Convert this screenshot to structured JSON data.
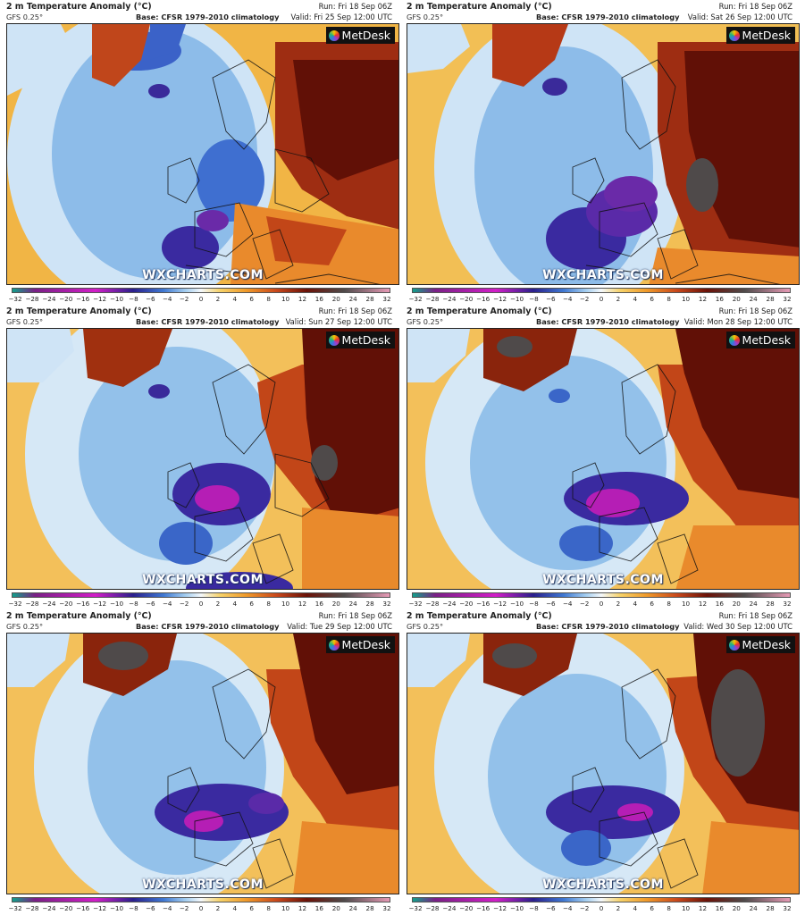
{
  "panels": [
    {
      "title": "2 m Temperature Anomaly (°C)",
      "model": "GFS 0.25°",
      "run": "Run: Fri 18 Sep 06Z",
      "base": "Base: CFSR 1979-2010 climatology",
      "valid": "Valid: Fri 25 Sep 12:00 UTC",
      "logo": "MetDesk",
      "watermark": "WXCHARTS.COM"
    },
    {
      "title": "2 m Temperature Anomaly (°C)",
      "model": "GFS 0.25°",
      "run": "Run: Fri 18 Sep 06Z",
      "base": "Base: CFSR 1979-2010 climatology",
      "valid": "Valid: Sat 26 Sep 12:00 UTC",
      "logo": "MetDesk",
      "watermark": "WXCHARTS.COM"
    },
    {
      "title": "2 m Temperature Anomaly (°C)",
      "model": "GFS 0.25°",
      "run": "Run: Fri 18 Sep 06Z",
      "base": "Base: CFSR 1979-2010 climatology",
      "valid": "Valid: Sun 27 Sep 12:00 UTC",
      "logo": "MetDesk",
      "watermark": "WXCHARTS.COM"
    },
    {
      "title": "2 m Temperature Anomaly (°C)",
      "model": "GFS 0.25°",
      "run": "Run: Fri 18 Sep 06Z",
      "base": "Base: CFSR 1979-2010 climatology",
      "valid": "Valid: Mon 28 Sep 12:00 UTC",
      "logo": "MetDesk",
      "watermark": "WXCHARTS.COM"
    },
    {
      "title": "2 m Temperature Anomaly (°C)",
      "model": "GFS 0.25°",
      "run": "Run: Fri 18 Sep 06Z",
      "base": "Base: CFSR 1979-2010 climatology",
      "valid": "Valid: Tue 29 Sep 12:00 UTC",
      "logo": "MetDesk",
      "watermark": "WXCHARTS.COM"
    },
    {
      "title": "2 m Temperature Anomaly (°C)",
      "model": "GFS 0.25°",
      "run": "Run: Fri 18 Sep 06Z",
      "base": "Base: CFSR 1979-2010 climatology",
      "valid": "Valid: Wed 30 Sep 12:00 UTC",
      "logo": "MetDesk",
      "watermark": "WXCHARTS.COM"
    }
  ],
  "colorbar": {
    "ticks": [
      "−32",
      "−28",
      "−24",
      "−20",
      "−16",
      "−12",
      "−10",
      "−8",
      "−6",
      "−4",
      "−2",
      "0",
      "2",
      "4",
      "6",
      "8",
      "10",
      "12",
      "16",
      "20",
      "24",
      "28",
      "32"
    ],
    "colors": {
      "teal": "#11a08a",
      "purple": "#7a1f86",
      "magenta": "#d21ec8",
      "deep_blue": "#2a1f8c",
      "blue": "#3f78d2",
      "light_blue": "#a6cff0",
      "white": "#f4f8fb",
      "yellow": "#f6d26a",
      "orange": "#f09a2a",
      "red": "#c9481b",
      "dark_red": "#6b1208",
      "gray": "#4f4a4a",
      "pink": "#e69ab5"
    }
  }
}
